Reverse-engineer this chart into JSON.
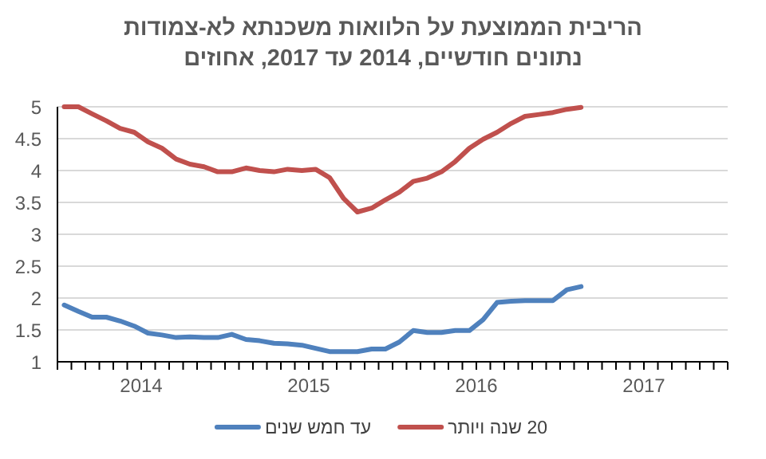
{
  "chart_data": {
    "type": "line",
    "title": "הריבית הממוצעת על הלוואות משכנתא לא-צמודות",
    "subtitle": "נתונים חודשיים, 2014 עד 2017, אחוזים",
    "x": [
      "2014-01-16",
      "2014-02-15",
      "2014-03-16",
      "2014-04-16",
      "2014-05-16",
      "2014-06-16",
      "2014-07-16",
      "2014-08-16",
      "2014-09-16",
      "2014-10-16",
      "2014-11-16",
      "2014-12-16",
      "2015-01-16",
      "2015-02-15",
      "2015-03-16",
      "2015-04-16",
      "2015-05-16",
      "2015-06-16",
      "2015-07-16",
      "2015-08-16",
      "2015-09-16",
      "2015-10-16",
      "2015-11-16",
      "2015-12-16",
      "2016-01-16",
      "2016-02-15",
      "2016-03-16",
      "2016-04-16",
      "2016-05-16",
      "2016-06-16",
      "2016-07-16",
      "2016-08-16",
      "2016-09-16",
      "2016-10-16",
      "2016-11-16",
      "2016-12-16",
      "2017-01-16",
      "2017-02-15"
    ],
    "series": [
      {
        "name": "20 שנה ויותר",
        "color": "#c0504d",
        "values": [
          5.0,
          5.0,
          4.89,
          4.78,
          4.66,
          4.6,
          4.45,
          4.35,
          4.18,
          4.1,
          4.06,
          3.98,
          3.98,
          4.04,
          4.0,
          3.98,
          4.02,
          4.0,
          4.02,
          3.89,
          3.56,
          3.35,
          3.41,
          3.54,
          3.66,
          3.83,
          3.88,
          3.98,
          4.14,
          4.35,
          4.49,
          4.6,
          4.74,
          4.85,
          4.88,
          4.91,
          4.96,
          4.99
        ]
      },
      {
        "name": "עד חמש שנים",
        "color": "#4f81bd",
        "values": [
          1.89,
          1.79,
          1.7,
          1.7,
          1.64,
          1.56,
          1.45,
          1.42,
          1.38,
          1.39,
          1.38,
          1.38,
          1.43,
          1.35,
          1.33,
          1.29,
          1.28,
          1.26,
          1.21,
          1.16,
          1.16,
          1.16,
          1.2,
          1.2,
          1.31,
          1.49,
          1.46,
          1.46,
          1.49,
          1.49,
          1.66,
          1.93,
          1.95,
          1.96,
          1.96,
          1.96,
          2.13,
          2.18
        ]
      }
    ],
    "xlim": [
      "2014-01-01",
      "2018-01-01"
    ],
    "xticks": [
      {
        "value": "2014-01-01",
        "label": null
      },
      {
        "value": "2014-02-01",
        "label": null
      },
      {
        "value": "2014-03-01",
        "label": null
      },
      {
        "value": "2014-04-01",
        "label": null
      },
      {
        "value": "2014-05-01",
        "label": null
      },
      {
        "value": "2014-06-01",
        "label": null
      },
      {
        "value": "2014-07-01",
        "label": "2014"
      },
      {
        "value": "2014-08-01",
        "label": null
      },
      {
        "value": "2014-09-01",
        "label": null
      },
      {
        "value": "2014-10-01",
        "label": null
      },
      {
        "value": "2014-11-01",
        "label": null
      },
      {
        "value": "2014-12-01",
        "label": null
      },
      {
        "value": "2015-01-01",
        "label": null
      },
      {
        "value": "2015-02-01",
        "label": null
      },
      {
        "value": "2015-03-01",
        "label": null
      },
      {
        "value": "2015-04-01",
        "label": null
      },
      {
        "value": "2015-05-01",
        "label": null
      },
      {
        "value": "2015-06-01",
        "label": null
      },
      {
        "value": "2015-07-01",
        "label": "2015"
      },
      {
        "value": "2015-08-01",
        "label": null
      },
      {
        "value": "2015-09-01",
        "label": null
      },
      {
        "value": "2015-10-01",
        "label": null
      },
      {
        "value": "2015-11-01",
        "label": null
      },
      {
        "value": "2015-12-01",
        "label": null
      },
      {
        "value": "2016-01-01",
        "label": null
      },
      {
        "value": "2016-02-01",
        "label": null
      },
      {
        "value": "2016-03-01",
        "label": null
      },
      {
        "value": "2016-04-01",
        "label": null
      },
      {
        "value": "2016-05-01",
        "label": null
      },
      {
        "value": "2016-06-01",
        "label": null
      },
      {
        "value": "2016-07-01",
        "label": "2016"
      },
      {
        "value": "2016-08-01",
        "label": null
      },
      {
        "value": "2016-09-01",
        "label": null
      },
      {
        "value": "2016-10-01",
        "label": null
      },
      {
        "value": "2016-11-01",
        "label": null
      },
      {
        "value": "2016-12-01",
        "label": null
      },
      {
        "value": "2017-01-01",
        "label": null
      },
      {
        "value": "2017-02-01",
        "label": null
      },
      {
        "value": "2017-03-01",
        "label": null
      },
      {
        "value": "2017-04-01",
        "label": null
      },
      {
        "value": "2017-05-01",
        "label": null
      },
      {
        "value": "2017-06-01",
        "label": null
      },
      {
        "value": "2017-07-01",
        "label": "2017"
      },
      {
        "value": "2017-08-01",
        "label": null
      },
      {
        "value": "2017-09-01",
        "label": null
      },
      {
        "value": "2017-10-01",
        "label": null
      },
      {
        "value": "2017-11-01",
        "label": null
      },
      {
        "value": "2017-12-01",
        "label": null
      },
      {
        "value": "2018-01-01",
        "label": null
      }
    ],
    "ylim": [
      1,
      5
    ],
    "yticks": [
      1,
      1.5,
      2,
      2.5,
      3,
      3.5,
      4,
      4.5,
      5
    ],
    "grid": "y",
    "legend": "bottom",
    "line_style": "solid"
  }
}
